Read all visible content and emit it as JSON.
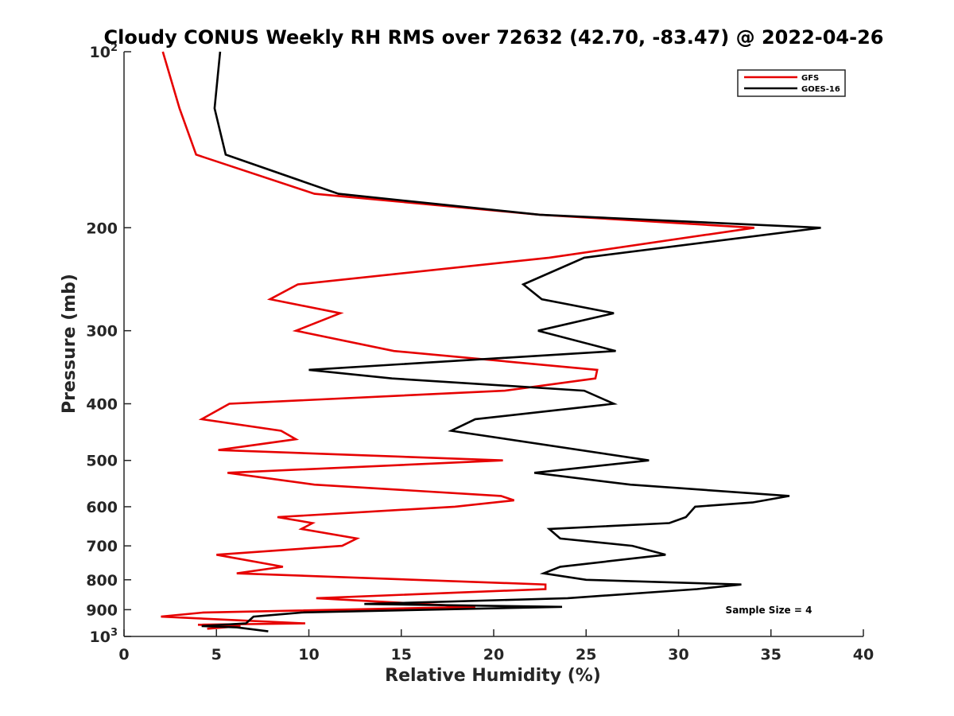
{
  "chart_data": {
    "type": "line",
    "title": "Cloudy CONUS Weekly RH RMS over 72632 (42.70, -83.47) @ 2022-04-26",
    "xlabel": "Relative Humidity (%)",
    "ylabel": "Pressure (mb)",
    "xlim": [
      0,
      40
    ],
    "ylim": [
      100,
      1000
    ],
    "y_scale": "log",
    "y_reversed": true,
    "grid": false,
    "legend_position": "top-right",
    "x_ticks": [
      0,
      5,
      10,
      15,
      20,
      25,
      30,
      35,
      40
    ],
    "x_tick_labels": [
      "0",
      "5",
      "10",
      "15",
      "20",
      "25",
      "30",
      "35",
      "40"
    ],
    "y_ticks": [
      {
        "value": 100,
        "label": "10",
        "sup": "2"
      },
      {
        "value": 200,
        "label": "200",
        "sup": ""
      },
      {
        "value": 300,
        "label": "300",
        "sup": ""
      },
      {
        "value": 400,
        "label": "400",
        "sup": ""
      },
      {
        "value": 500,
        "label": "500",
        "sup": ""
      },
      {
        "value": 600,
        "label": "600",
        "sup": ""
      },
      {
        "value": 700,
        "label": "700",
        "sup": ""
      },
      {
        "value": 800,
        "label": "800",
        "sup": ""
      },
      {
        "value": 900,
        "label": "900",
        "sup": ""
      },
      {
        "value": 1000,
        "label": "10",
        "sup": "3"
      }
    ],
    "annotation": "Sample Size = 4",
    "series": [
      {
        "name": "GFS",
        "color": "#e60000",
        "points": [
          [
            2.1,
            100
          ],
          [
            3.0,
            125
          ],
          [
            3.9,
            150
          ],
          [
            10.3,
            175
          ],
          [
            22.5,
            190
          ],
          [
            34.1,
            200
          ],
          [
            23.0,
            225
          ],
          [
            9.4,
            250
          ],
          [
            7.9,
            265
          ],
          [
            11.7,
            280
          ],
          [
            9.3,
            300
          ],
          [
            14.6,
            325
          ],
          [
            25.6,
            350
          ],
          [
            25.5,
            362
          ],
          [
            20.6,
            380
          ],
          [
            5.7,
            400
          ],
          [
            4.2,
            425
          ],
          [
            8.5,
            445
          ],
          [
            9.3,
            460
          ],
          [
            5.1,
            480
          ],
          [
            20.5,
            500
          ],
          [
            5.6,
            525
          ],
          [
            10.3,
            550
          ],
          [
            20.4,
            575
          ],
          [
            21.1,
            585
          ],
          [
            17.9,
            600
          ],
          [
            8.3,
            625
          ],
          [
            10.2,
            640
          ],
          [
            9.6,
            655
          ],
          [
            12.6,
            680
          ],
          [
            11.8,
            700
          ],
          [
            5.0,
            725
          ],
          [
            8.6,
            760
          ],
          [
            6.1,
            780
          ],
          [
            22.8,
            815
          ],
          [
            22.8,
            830
          ],
          [
            10.4,
            860
          ],
          [
            19.0,
            890
          ],
          [
            4.3,
            910
          ],
          [
            2.0,
            925
          ],
          [
            9.8,
            950
          ],
          [
            4.0,
            955
          ],
          [
            6.3,
            960
          ],
          [
            4.5,
            970
          ]
        ]
      },
      {
        "name": "GOES-16",
        "color": "#000000",
        "points": [
          [
            5.2,
            100
          ],
          [
            4.9,
            125
          ],
          [
            5.5,
            150
          ],
          [
            11.6,
            175
          ],
          [
            22.5,
            190
          ],
          [
            37.7,
            200
          ],
          [
            24.9,
            225
          ],
          [
            21.6,
            250
          ],
          [
            22.6,
            265
          ],
          [
            26.5,
            280
          ],
          [
            22.4,
            300
          ],
          [
            26.6,
            325
          ],
          [
            10.0,
            350
          ],
          [
            14.5,
            362
          ],
          [
            24.9,
            380
          ],
          [
            26.5,
            400
          ],
          [
            19.0,
            425
          ],
          [
            17.7,
            445
          ],
          [
            28.4,
            500
          ],
          [
            22.2,
            525
          ],
          [
            27.4,
            550
          ],
          [
            36.0,
            575
          ],
          [
            34.0,
            590
          ],
          [
            30.9,
            600
          ],
          [
            30.4,
            625
          ],
          [
            29.5,
            640
          ],
          [
            23.0,
            655
          ],
          [
            23.6,
            680
          ],
          [
            27.5,
            700
          ],
          [
            29.3,
            725
          ],
          [
            23.6,
            760
          ],
          [
            22.7,
            780
          ],
          [
            25.0,
            800
          ],
          [
            33.4,
            815
          ],
          [
            31.0,
            830
          ],
          [
            24.0,
            860
          ],
          [
            13.0,
            880
          ],
          [
            23.7,
            890
          ],
          [
            9.6,
            910
          ],
          [
            7.0,
            925
          ],
          [
            6.6,
            950
          ],
          [
            4.2,
            960
          ],
          [
            6.1,
            965
          ],
          [
            7.8,
            980
          ]
        ]
      }
    ]
  }
}
